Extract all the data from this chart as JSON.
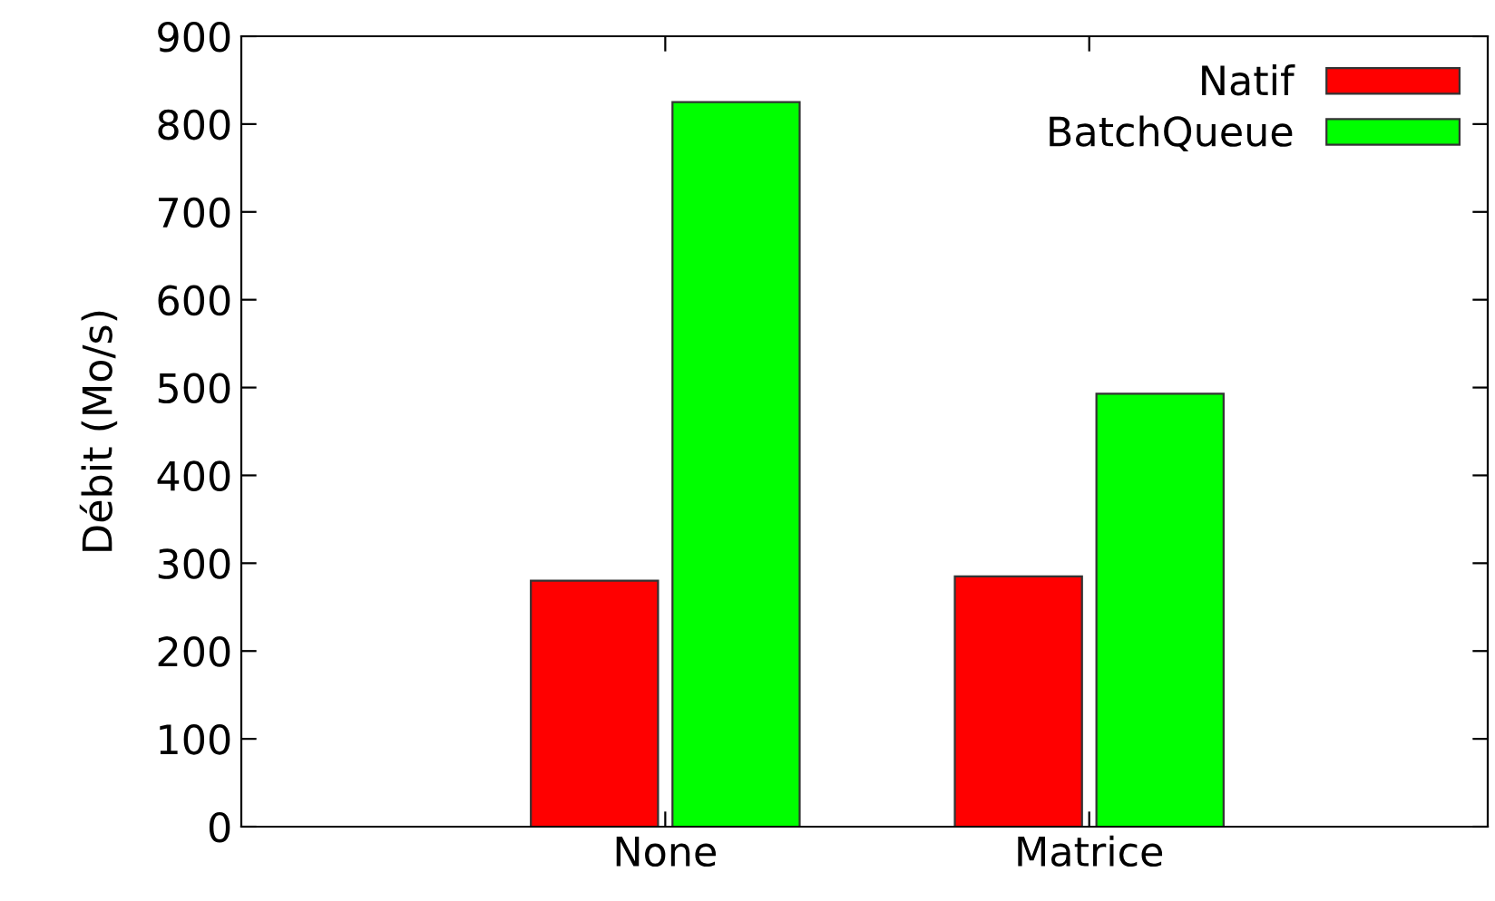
{
  "chart_data": {
    "type": "bar",
    "ylabel": "Débit (Mo/s)",
    "categories": [
      "None",
      "Matrice"
    ],
    "series": [
      {
        "name": "Natif",
        "color": "#ff0000",
        "values": [
          280,
          285
        ]
      },
      {
        "name": "BatchQueue",
        "color": "#00ff00",
        "values": [
          825,
          493
        ]
      }
    ],
    "ylim": [
      0,
      900
    ],
    "yticks": [
      0,
      100,
      200,
      300,
      400,
      500,
      600,
      700,
      800,
      900
    ],
    "grid": false,
    "legend": "top right"
  }
}
